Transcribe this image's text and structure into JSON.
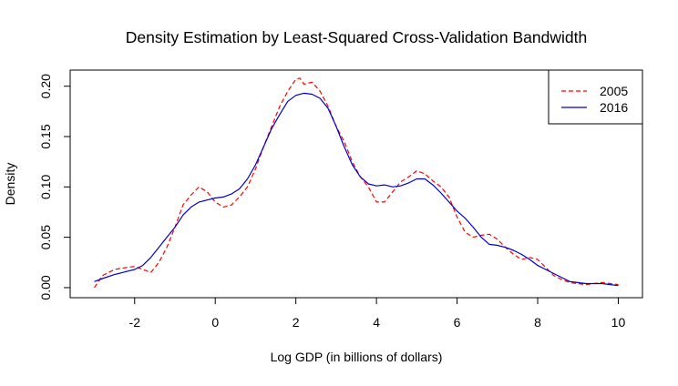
{
  "chart_data": {
    "type": "line",
    "title": "Density Estimation by Least-Squared Cross-Validation Bandwidth",
    "xlabel": "Log GDP (in billions of dollars)",
    "ylabel": "Density",
    "xlim": [
      -3.6,
      10.6
    ],
    "ylim": [
      -0.01,
      0.216
    ],
    "xticks": [
      -2,
      0,
      2,
      4,
      6,
      8,
      10
    ],
    "xtick_labels": [
      "-2",
      "0",
      "2",
      "4",
      "6",
      "8",
      "10"
    ],
    "yticks": [
      0.0,
      0.05,
      0.1,
      0.15,
      0.2
    ],
    "ytick_labels": [
      "0.00",
      "0.05",
      "0.10",
      "0.15",
      "0.20"
    ],
    "grid": false,
    "legend_position": "top-right",
    "series": [
      {
        "name": "2005",
        "color": "#ff0000",
        "dash": "dashed",
        "x": [
          -3.0,
          -2.8,
          -2.5,
          -2.2,
          -2.0,
          -1.8,
          -1.6,
          -1.4,
          -1.2,
          -1.0,
          -0.8,
          -0.6,
          -0.4,
          -0.2,
          0.0,
          0.2,
          0.4,
          0.6,
          0.8,
          1.0,
          1.2,
          1.4,
          1.6,
          1.8,
          2.0,
          2.1,
          2.2,
          2.4,
          2.6,
          2.8,
          3.0,
          3.2,
          3.4,
          3.6,
          3.8,
          4.0,
          4.2,
          4.4,
          4.6,
          4.8,
          5.0,
          5.2,
          5.4,
          5.6,
          5.8,
          6.0,
          6.2,
          6.4,
          6.6,
          6.8,
          7.0,
          7.2,
          7.4,
          7.6,
          7.8,
          8.0,
          8.2,
          8.4,
          8.6,
          8.8,
          9.0,
          9.2,
          9.4,
          9.6,
          9.8,
          10.0
        ],
        "values": [
          0.0,
          0.012,
          0.018,
          0.02,
          0.021,
          0.018,
          0.015,
          0.025,
          0.04,
          0.06,
          0.082,
          0.092,
          0.1,
          0.095,
          0.085,
          0.08,
          0.082,
          0.09,
          0.1,
          0.118,
          0.14,
          0.16,
          0.18,
          0.195,
          0.207,
          0.208,
          0.202,
          0.204,
          0.195,
          0.18,
          0.16,
          0.145,
          0.125,
          0.11,
          0.1,
          0.085,
          0.085,
          0.095,
          0.105,
          0.11,
          0.116,
          0.113,
          0.106,
          0.1,
          0.09,
          0.07,
          0.055,
          0.05,
          0.052,
          0.053,
          0.048,
          0.04,
          0.033,
          0.028,
          0.03,
          0.028,
          0.02,
          0.012,
          0.008,
          0.005,
          0.004,
          0.003,
          0.004,
          0.005,
          0.004,
          0.003
        ]
      },
      {
        "name": "2016",
        "color": "#0000cd",
        "dash": "solid",
        "x": [
          -3.0,
          -2.8,
          -2.5,
          -2.2,
          -2.0,
          -1.8,
          -1.6,
          -1.4,
          -1.2,
          -1.0,
          -0.8,
          -0.6,
          -0.4,
          -0.2,
          0.0,
          0.2,
          0.4,
          0.6,
          0.8,
          1.0,
          1.2,
          1.4,
          1.6,
          1.8,
          2.0,
          2.2,
          2.4,
          2.6,
          2.8,
          3.0,
          3.2,
          3.4,
          3.6,
          3.8,
          4.0,
          4.2,
          4.4,
          4.6,
          4.8,
          5.0,
          5.2,
          5.4,
          5.6,
          5.8,
          6.0,
          6.2,
          6.4,
          6.6,
          6.8,
          7.0,
          7.2,
          7.4,
          7.6,
          7.8,
          8.0,
          8.2,
          8.4,
          8.6,
          8.8,
          9.0,
          9.2,
          9.4,
          9.6,
          9.8,
          10.0
        ],
        "values": [
          0.006,
          0.009,
          0.013,
          0.016,
          0.018,
          0.022,
          0.03,
          0.04,
          0.05,
          0.06,
          0.072,
          0.08,
          0.085,
          0.087,
          0.089,
          0.09,
          0.093,
          0.098,
          0.108,
          0.122,
          0.14,
          0.158,
          0.172,
          0.185,
          0.191,
          0.193,
          0.192,
          0.188,
          0.178,
          0.16,
          0.14,
          0.122,
          0.11,
          0.103,
          0.101,
          0.102,
          0.1,
          0.101,
          0.104,
          0.108,
          0.108,
          0.102,
          0.094,
          0.085,
          0.076,
          0.069,
          0.06,
          0.05,
          0.043,
          0.042,
          0.04,
          0.037,
          0.033,
          0.028,
          0.022,
          0.018,
          0.014,
          0.01,
          0.006,
          0.005,
          0.004,
          0.004,
          0.004,
          0.003,
          0.002
        ]
      }
    ]
  }
}
